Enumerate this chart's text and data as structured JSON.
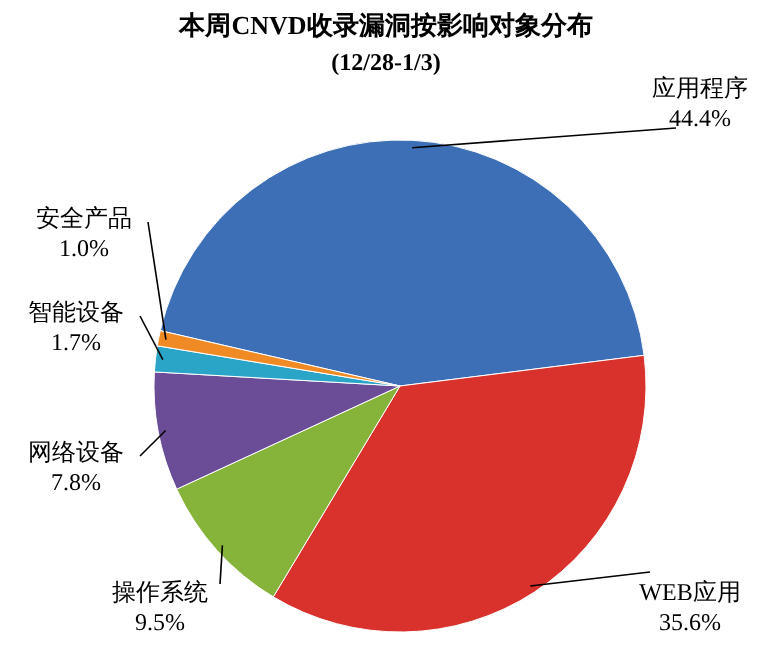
{
  "chart_data": {
    "type": "pie",
    "title": "本周CNVD收录漏洞按影响对象分布",
    "subtitle": "(12/28-1/3)",
    "categories": [
      "应用程序",
      "WEB应用",
      "操作系统",
      "网络设备",
      "智能设备",
      "安全产品"
    ],
    "values": [
      44.4,
      35.6,
      9.5,
      7.8,
      1.7,
      1.0
    ],
    "colors": [
      "#3d6fb6",
      "#d9312b",
      "#86b33a",
      "#6a4d96",
      "#2aa5c8",
      "#f08a24"
    ],
    "value_labels": [
      "44.4%",
      "35.6%",
      "9.5%",
      "7.8%",
      "1.7%",
      "1.0%"
    ]
  }
}
